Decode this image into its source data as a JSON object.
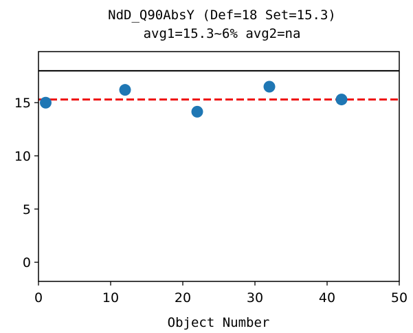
{
  "chart_data": {
    "type": "scatter",
    "title": "NdD_Q90AbsY (Def=18 Set=15.3)",
    "subtitle": "avg1=15.3~6% avg2=na",
    "xlabel": "Object Number",
    "ylabel": "",
    "xlim": [
      0,
      50
    ],
    "ylim": [
      -1.8,
      19.8
    ],
    "xticks": [
      0,
      10,
      20,
      30,
      40,
      50
    ],
    "yticks": [
      0,
      5,
      10,
      15
    ],
    "grid": false,
    "points": [
      {
        "x": 1,
        "y": 15.0
      },
      {
        "x": 12,
        "y": 16.2
      },
      {
        "x": 22,
        "y": 14.15
      },
      {
        "x": 32,
        "y": 16.5
      },
      {
        "x": 42,
        "y": 15.3
      }
    ],
    "reference_lines": [
      {
        "y": 18,
        "style": "solid",
        "color": "#000000"
      },
      {
        "y": 15.3,
        "style": "dashed",
        "color": "#ee1111"
      }
    ],
    "marker_color": "#1f77b4"
  }
}
